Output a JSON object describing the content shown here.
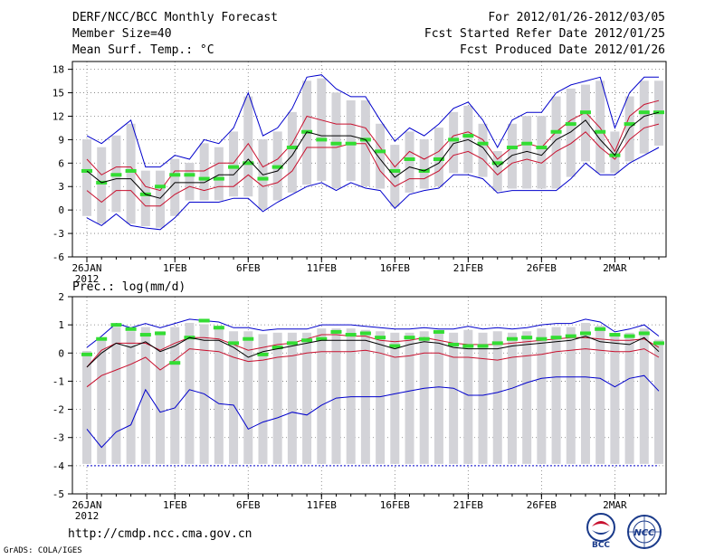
{
  "header": {
    "title": "DERF/NCC/BCC Monthly Forecast",
    "member_size": "Member Size=40",
    "variable": "Mean Surf. Temp.: °C",
    "period": "For 2012/01/26-2012/03/05",
    "start_date": "Fcst Started Refer Date 2012/01/25",
    "produced_date": "Fcst Produced Date 2012/01/26"
  },
  "footer": {
    "url": "http://cmdp.ncc.cma.gov.cn",
    "credit": "GrADS: COLA/IGES",
    "logo_bcc": "BCC",
    "logo_ncc": "NCC"
  },
  "colors": {
    "median": "#000000",
    "inner_band": "#c8102e",
    "outer_band": "#0000cc",
    "box": "#d3d3d8",
    "climatology": "#33dd33",
    "grid": "#777777"
  },
  "chart_data": [
    {
      "type": "line",
      "title": "Mean Surf. Temp.: °C",
      "x_dates": [
        "26JAN",
        "27JAN",
        "28JAN",
        "29JAN",
        "30JAN",
        "31JAN",
        "1FEB",
        "2FEB",
        "3FEB",
        "4FEB",
        "5FEB",
        "6FEB",
        "7FEB",
        "8FEB",
        "9FEB",
        "10FEB",
        "11FEB",
        "12FEB",
        "13FEB",
        "14FEB",
        "15FEB",
        "16FEB",
        "17FEB",
        "18FEB",
        "19FEB",
        "20FEB",
        "21FEB",
        "22FEB",
        "23FEB",
        "24FEB",
        "25FEB",
        "26FEB",
        "27FEB",
        "28FEB",
        "29FEB",
        "1MAR",
        "2MAR",
        "3MAR",
        "4MAR",
        "5MAR"
      ],
      "xtick_labels": [
        "26JAN",
        "1FEB",
        "6FEB",
        "11FEB",
        "16FEB",
        "21FEB",
        "26FEB",
        "2MAR"
      ],
      "xtick_positions": [
        0,
        6,
        11,
        16,
        21,
        26,
        31,
        36
      ],
      "x_year": "2012",
      "ylim": [
        -6,
        19
      ],
      "yticks": [
        -6,
        -3,
        0,
        3,
        6,
        9,
        12,
        15,
        18
      ],
      "series": [
        {
          "name": "max",
          "values": [
            9.5,
            8.5,
            10,
            11.5,
            5.5,
            5.5,
            7,
            6.5,
            9,
            8.5,
            10.5,
            15,
            9.5,
            10.5,
            13,
            17,
            17.3,
            15.5,
            14.5,
            14.5,
            11.5,
            8.8,
            10.5,
            9.5,
            11,
            13,
            13.8,
            11.5,
            8,
            11.5,
            12.5,
            12.5,
            15,
            16,
            16.5,
            17,
            10.5,
            15,
            17,
            17
          ]
        },
        {
          "name": "upper",
          "values": [
            6.5,
            4.5,
            5.5,
            5.5,
            3,
            2.5,
            5,
            5,
            5,
            6,
            6,
            8.5,
            5.5,
            6.5,
            8.5,
            12,
            11.5,
            11,
            11,
            10.5,
            8,
            5.5,
            7.5,
            6.5,
            7.5,
            9.5,
            10,
            9,
            6.5,
            8,
            8.5,
            8,
            10,
            11.5,
            12.5,
            10.5,
            7.5,
            12,
            13.5,
            14
          ]
        },
        {
          "name": "median",
          "values": [
            5,
            3.5,
            4,
            4,
            2,
            1.5,
            3.5,
            3.5,
            3.5,
            4.5,
            4.5,
            6.5,
            4.5,
            5,
            7,
            10,
            9.5,
            9.5,
            9.5,
            9,
            6.5,
            4.2,
            5.5,
            5,
            6,
            8.5,
            9,
            8,
            5.5,
            7,
            7.5,
            7,
            9,
            10,
            11.5,
            9,
            7,
            10.5,
            12,
            12.5
          ]
        },
        {
          "name": "lower",
          "values": [
            2.5,
            1,
            2.5,
            2.5,
            0.5,
            0.5,
            2,
            3,
            2.5,
            3,
            3,
            4.5,
            3,
            3.5,
            5,
            8,
            8,
            8,
            8.5,
            8.5,
            5,
            3,
            4,
            4,
            5,
            7,
            7.5,
            6.5,
            4.5,
            6,
            6.5,
            6,
            7.5,
            8.5,
            10,
            8,
            6.5,
            9,
            10.5,
            11
          ]
        },
        {
          "name": "min",
          "values": [
            -1,
            -2,
            -0.5,
            -2,
            -2.3,
            -2.5,
            -1,
            1,
            1,
            1,
            1.5,
            1.5,
            -0.2,
            1,
            2,
            3,
            3.5,
            2.5,
            3.5,
            2.8,
            2.5,
            0.2,
            2,
            2.5,
            2.8,
            4.5,
            4.5,
            4,
            2.2,
            2.5,
            2.5,
            2.5,
            2.5,
            4,
            6,
            4.5,
            4.5,
            6,
            7,
            8
          ]
        },
        {
          "name": "climatology",
          "values": [
            5,
            3.5,
            4.5,
            5,
            2,
            3,
            4.5,
            4.5,
            4,
            4,
            5.5,
            6,
            4,
            5.5,
            8,
            10,
            9,
            8.5,
            8.5,
            9,
            7.5,
            5,
            6.5,
            5,
            6.5,
            9,
            9.5,
            8.5,
            6,
            8,
            8.5,
            8,
            10,
            11,
            12.5,
            10,
            7,
            11,
            12.5,
            12.5
          ]
        }
      ]
    },
    {
      "type": "line",
      "title": "Prec.: log(mm/d)",
      "x_dates": [
        "26JAN",
        "27JAN",
        "28JAN",
        "29JAN",
        "30JAN",
        "31JAN",
        "1FEB",
        "2FEB",
        "3FEB",
        "4FEB",
        "5FEB",
        "6FEB",
        "7FEB",
        "8FEB",
        "9FEB",
        "10FEB",
        "11FEB",
        "12FEB",
        "13FEB",
        "14FEB",
        "15FEB",
        "16FEB",
        "17FEB",
        "18FEB",
        "19FEB",
        "20FEB",
        "21FEB",
        "22FEB",
        "23FEB",
        "24FEB",
        "25FEB",
        "26FEB",
        "27FEB",
        "28FEB",
        "29FEB",
        "1MAR",
        "2MAR",
        "3MAR",
        "4MAR",
        "5MAR"
      ],
      "xtick_labels": [
        "26JAN",
        "1FEB",
        "6FEB",
        "11FEB",
        "16FEB",
        "21FEB",
        "26FEB",
        "2MAR"
      ],
      "xtick_positions": [
        0,
        6,
        11,
        16,
        21,
        26,
        31,
        36
      ],
      "x_year": "2012",
      "ylim": [
        -5,
        2
      ],
      "yticks": [
        -5,
        -4,
        -3,
        -2,
        -1,
        0,
        1,
        2
      ],
      "series": [
        {
          "name": "max",
          "values": [
            0.2,
            0.6,
            1.05,
            0.9,
            1.05,
            0.9,
            1.05,
            1.2,
            1.15,
            1.1,
            0.9,
            0.9,
            0.8,
            0.85,
            0.85,
            0.85,
            1,
            1,
            1,
            0.95,
            0.9,
            0.85,
            0.85,
            0.9,
            0.85,
            0.85,
            0.95,
            0.85,
            0.9,
            0.85,
            0.9,
            1,
            1.05,
            1.05,
            1.2,
            1.1,
            0.75,
            0.85,
            1,
            0.6
          ]
        },
        {
          "name": "upper",
          "values": [
            -0.5,
            0.1,
            0.35,
            0.35,
            0.35,
            0.1,
            0.35,
            0.55,
            0.55,
            0.5,
            0.3,
            0.1,
            0.2,
            0.3,
            0.35,
            0.5,
            0.65,
            0.65,
            0.6,
            0.6,
            0.45,
            0.4,
            0.45,
            0.55,
            0.45,
            0.35,
            0.3,
            0.3,
            0.3,
            0.35,
            0.4,
            0.45,
            0.5,
            0.55,
            0.55,
            0.5,
            0.45,
            0.45,
            0.5,
            0.2
          ]
        },
        {
          "name": "median",
          "values": [
            -0.5,
            0,
            0.35,
            0.2,
            0.4,
            0.05,
            0.25,
            0.55,
            0.45,
            0.45,
            0.2,
            -0.15,
            0.05,
            0.15,
            0.25,
            0.35,
            0.45,
            0.45,
            0.45,
            0.45,
            0.3,
            0.15,
            0.3,
            0.4,
            0.35,
            0.2,
            0.15,
            0.15,
            0.15,
            0.25,
            0.3,
            0.35,
            0.4,
            0.45,
            0.6,
            0.4,
            0.35,
            0.3,
            0.55,
            0.05
          ]
        },
        {
          "name": "lower",
          "values": [
            -1.2,
            -0.8,
            -0.6,
            -0.4,
            -0.15,
            -0.6,
            -0.25,
            0.15,
            0.1,
            0.05,
            -0.15,
            -0.3,
            -0.25,
            -0.15,
            -0.1,
            0,
            0.05,
            0.05,
            0.05,
            0.1,
            0,
            -0.15,
            -0.1,
            0,
            0,
            -0.15,
            -0.15,
            -0.2,
            -0.25,
            -0.15,
            -0.1,
            -0.05,
            0.05,
            0.1,
            0.15,
            0.1,
            0.05,
            0.05,
            0.15,
            -0.15
          ]
        },
        {
          "name": "min",
          "values": [
            -2.7,
            -3.35,
            -2.8,
            -2.55,
            -1.3,
            -2.1,
            -1.95,
            -1.3,
            -1.45,
            -1.8,
            -1.85,
            -2.7,
            -2.45,
            -2.3,
            -2.1,
            -2.2,
            -1.85,
            -1.6,
            -1.55,
            -1.55,
            -1.55,
            -1.45,
            -1.35,
            -1.25,
            -1.2,
            -1.25,
            -1.5,
            -1.5,
            -1.4,
            -1.25,
            -1.05,
            -0.9,
            -0.85,
            -0.85,
            -0.85,
            -0.9,
            -1.2,
            -0.9,
            -0.8,
            -1.35
          ]
        },
        {
          "name": "floor",
          "values": [
            -4,
            -4,
            -4,
            -4,
            -4,
            -4,
            -4,
            -4,
            -4,
            -4,
            -4,
            -4,
            -4,
            -4,
            -4,
            -4,
            -4,
            -4,
            -4,
            -4,
            -4,
            -4,
            -4,
            -4,
            -4,
            -4,
            -4,
            -4,
            -4,
            -4,
            -4,
            -4,
            -4,
            -4,
            -4,
            -4,
            -4,
            -4,
            -4,
            -4
          ]
        },
        {
          "name": "climatology",
          "values": [
            -0.05,
            0.5,
            1,
            0.85,
            0.65,
            0.7,
            -0.35,
            0.55,
            1.15,
            0.9,
            0.35,
            0.5,
            -0.05,
            0.2,
            0.35,
            0.45,
            0.5,
            0.75,
            0.65,
            0.7,
            0.55,
            0.25,
            0.55,
            0.5,
            0.75,
            0.3,
            0.25,
            0.25,
            0.35,
            0.5,
            0.55,
            0.5,
            0.55,
            0.6,
            0.7,
            0.85,
            0.65,
            0.6,
            0.7,
            0.35
          ]
        }
      ]
    }
  ]
}
